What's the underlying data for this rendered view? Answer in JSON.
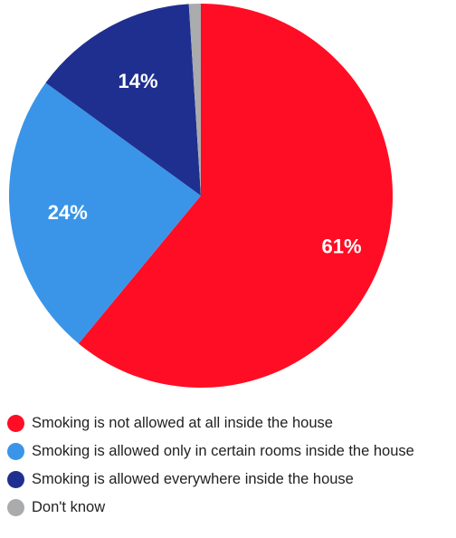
{
  "chart_data": {
    "type": "pie",
    "slices": [
      {
        "label": "Smoking is not allowed at all inside the house",
        "value": 61,
        "display": "61%",
        "color": "#ff0d24"
      },
      {
        "label": "Smoking is allowed only in certain rooms inside the house",
        "value": 24,
        "display": "24%",
        "color": "#3a95e8"
      },
      {
        "label": "Smoking is allowed everywhere inside the house",
        "value": 14,
        "display": "14%",
        "color": "#1f2f8f"
      },
      {
        "label": "Don't know",
        "value": 1,
        "display": "",
        "color": "#a9abad"
      }
    ],
    "start_angle_deg": 0,
    "direction": "clockwise",
    "legend_position": "bottom"
  }
}
